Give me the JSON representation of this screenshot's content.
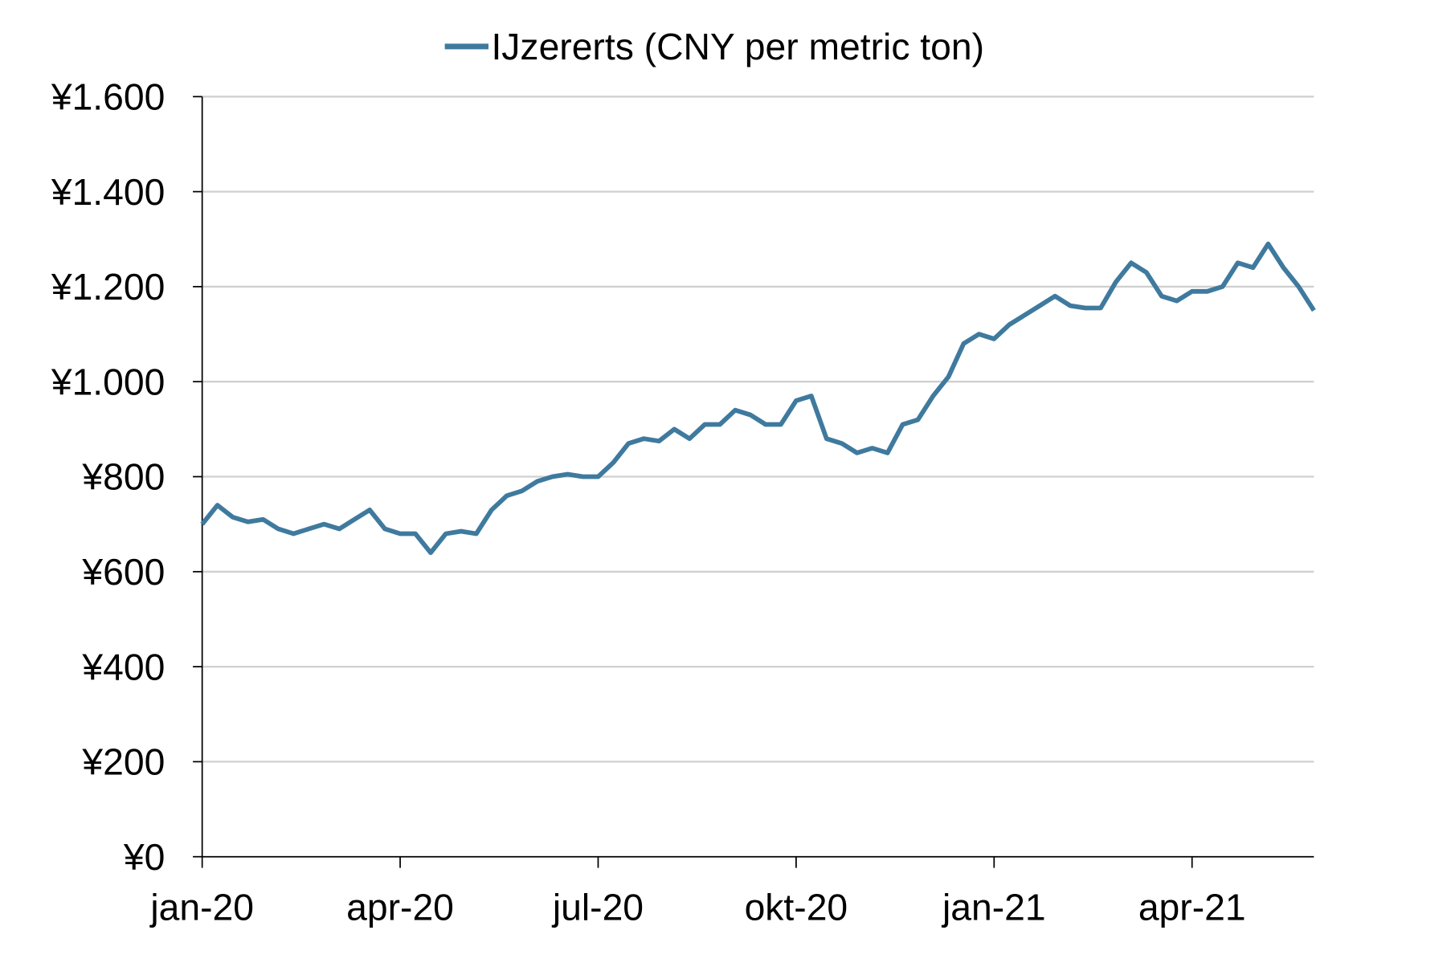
{
  "chart_data": {
    "type": "line",
    "categories": [
      "jan-20",
      null,
      null,
      null,
      null,
      null,
      null,
      null,
      null,
      null,
      null,
      null,
      null,
      "apr-20",
      null,
      null,
      null,
      null,
      null,
      null,
      null,
      null,
      null,
      null,
      null,
      null,
      "jul-20",
      null,
      null,
      null,
      null,
      null,
      null,
      null,
      null,
      null,
      null,
      null,
      null,
      "okt-20",
      null,
      null,
      null,
      null,
      null,
      null,
      null,
      null,
      null,
      null,
      null,
      null,
      "jan-21",
      null,
      null,
      null,
      null,
      null,
      null,
      null,
      null,
      null,
      null,
      null,
      null,
      "apr-21",
      null,
      null,
      null,
      null,
      null,
      null,
      null,
      null
    ],
    "series": [
      {
        "name": "IJzererts (CNY per metric ton)",
        "color": "#3f7a9e",
        "values": [
          700,
          740,
          715,
          705,
          710,
          690,
          680,
          690,
          700,
          690,
          710,
          730,
          690,
          680,
          680,
          640,
          680,
          685,
          680,
          730,
          760,
          770,
          790,
          800,
          805,
          800,
          800,
          830,
          870,
          880,
          875,
          900,
          880,
          910,
          910,
          940,
          930,
          910,
          910,
          960,
          970,
          880,
          870,
          850,
          860,
          850,
          910,
          920,
          970,
          1010,
          1080,
          1100,
          1090,
          1120,
          1140,
          1160,
          1180,
          1160,
          1155,
          1155,
          1210,
          1250,
          1230,
          1180,
          1170,
          1190,
          1190,
          1200,
          1250,
          1240,
          1290,
          1240,
          1200,
          1150
        ]
      }
    ],
    "ylim": [
      0,
      1600
    ],
    "yticks": [
      {
        "value": 0,
        "label": "¥0"
      },
      {
        "value": 200,
        "label": "¥200"
      },
      {
        "value": 400,
        "label": "¥400"
      },
      {
        "value": 600,
        "label": "¥600"
      },
      {
        "value": 800,
        "label": "¥800"
      },
      {
        "value": 1000,
        "label": "¥1.000"
      },
      {
        "value": 1200,
        "label": "¥1.200"
      },
      {
        "value": 1400,
        "label": "¥1.400"
      },
      {
        "value": 1600,
        "label": "¥1.600"
      }
    ],
    "grid": true,
    "legend": "top"
  }
}
